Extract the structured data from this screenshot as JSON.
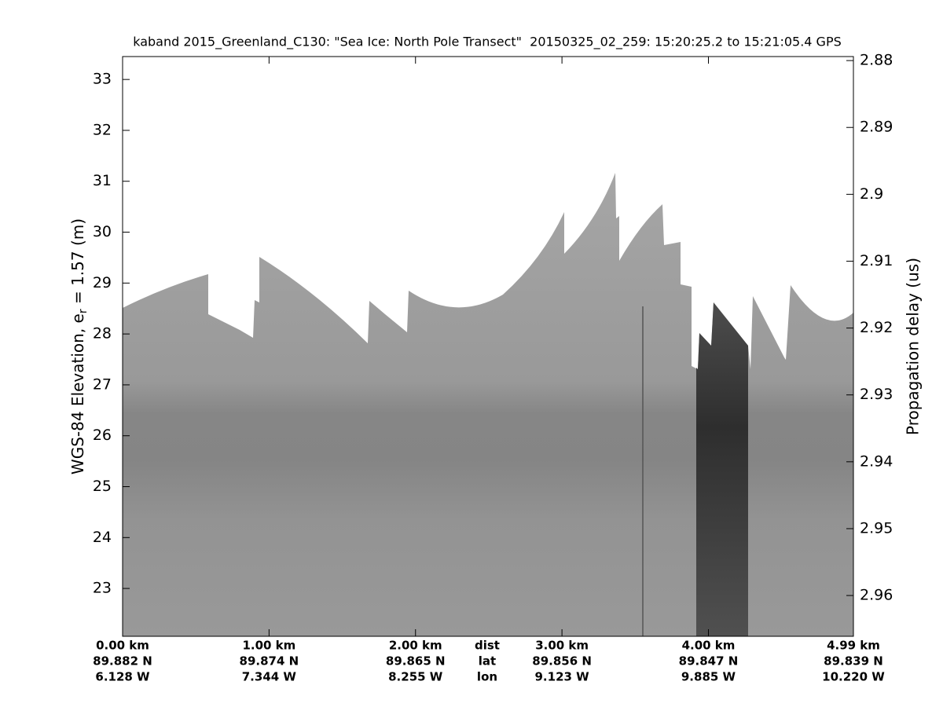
{
  "chart_data": {
    "type": "echogram",
    "title": "kaband 2015_Greenland_C130: \"Sea Ice: North Pole Transect\"  20150325_02_259: 15:20:25.2 to 15:21:05.4 GPS",
    "ylabel": [
      "WGS-84 Elevation, e",
      "r",
      " = 1.57 (m)"
    ],
    "y2label": "Propagation delay (us)",
    "xlim": [
      0,
      4.99
    ],
    "xticks": [
      {
        "value": 0,
        "label": "0.00 km"
      },
      {
        "value": 1,
        "label": "1.00 km"
      },
      {
        "value": 2,
        "label": "2.00 km"
      },
      {
        "value": 3,
        "label": "3.00 km"
      },
      {
        "value": 4,
        "label": "4.00 km"
      },
      {
        "value": 4.99,
        "label": "4.99 km"
      }
    ],
    "x_rows": [
      {
        "name": "dist",
        "labels": []
      },
      {
        "name": "lat",
        "labels": [
          "89.882 N",
          "89.874 N",
          "89.865 N",
          "89.856 N",
          "89.847 N",
          "89.839 N"
        ]
      },
      {
        "name": "lon",
        "labels": [
          "6.128 W",
          "7.344 W",
          "8.255 W",
          "9.123 W",
          "9.885 W",
          "10.220 W"
        ]
      }
    ],
    "ylim": [
      22.06,
      33.45
    ],
    "yticks": [
      23,
      24,
      25,
      26,
      27,
      28,
      29,
      30,
      31,
      32,
      33
    ],
    "y2lim": [
      2.9661,
      2.8794
    ],
    "y2ticks": [
      2.88,
      2.89,
      2.9,
      2.91,
      2.92,
      2.93,
      2.94,
      2.95,
      2.96
    ]
  }
}
